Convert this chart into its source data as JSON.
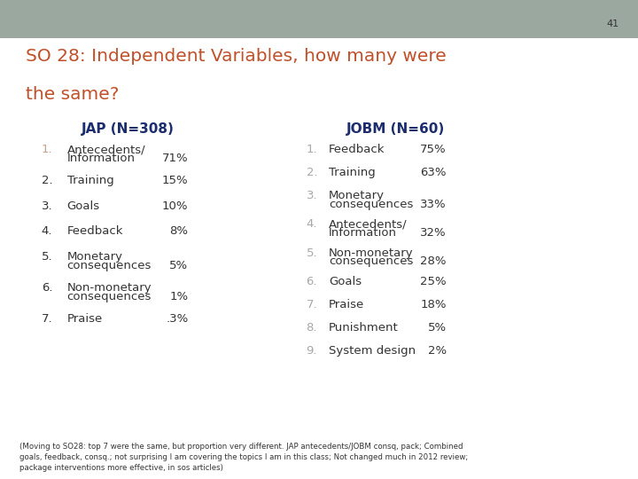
{
  "slide_number": "41",
  "title_line1": "SO 28: Independent Variables, how many were",
  "title_line2": "the same?",
  "title_color": "#C0502A",
  "header_bar_color": "#9BA8A0",
  "content_background": "#FFFFFF",
  "jap_header": "JAP (N=308)",
  "jobm_header": "JOBM (N=60)",
  "header_color": "#1C2D6E",
  "jap_items": [
    {
      "num": "1.",
      "text": "Antecedents/",
      "text2": "Information",
      "pct": "71%",
      "num_light": true
    },
    {
      "num": "2.",
      "text": "Training",
      "text2": "",
      "pct": "15%",
      "num_light": false
    },
    {
      "num": "3.",
      "text": "Goals",
      "text2": "",
      "pct": "10%",
      "num_light": false
    },
    {
      "num": "4.",
      "text": "Feedback",
      "text2": "",
      "pct": "8%",
      "num_light": false
    },
    {
      "num": "5.",
      "text": "Monetary",
      "text2": "consequences",
      "pct": "5%",
      "num_light": false
    },
    {
      "num": "6.",
      "text": "Non-monetary",
      "text2": "consequences",
      "pct": "1%",
      "num_light": false
    },
    {
      "num": "7.",
      "text": "Praise",
      "text2": "",
      "pct": ".3%",
      "num_light": false
    }
  ],
  "jobm_items": [
    {
      "num": "1.",
      "text": "Feedback",
      "text2": "",
      "pct": "75%",
      "num_light": true
    },
    {
      "num": "2.",
      "text": "Training",
      "text2": "",
      "pct": "63%",
      "num_light": true
    },
    {
      "num": "3.",
      "text": "Monetary",
      "text2": "consequences",
      "pct": "33%",
      "num_light": true
    },
    {
      "num": "4.",
      "text": "Antecedents/",
      "text2": "Information",
      "pct": "32%",
      "num_light": true
    },
    {
      "num": "5.",
      "text": "Non-monetary",
      "text2": "consequences",
      "pct": "28%",
      "num_light": true
    },
    {
      "num": "6.",
      "text": "Goals",
      "text2": "",
      "pct": "25%",
      "num_light": true
    },
    {
      "num": "7.",
      "text": "Praise",
      "text2": "",
      "pct": "18%",
      "num_light": true
    },
    {
      "num": "8.",
      "text": "Punishment",
      "text2": "",
      "pct": "5%",
      "num_light": true
    },
    {
      "num": "9.",
      "text": "System design",
      "text2": "",
      "pct": "2%",
      "num_light": true
    }
  ],
  "jap_num_light_color": "#C8A090",
  "jap_num_dark_color": "#333333",
  "jobm_num_color": "#A8A8A8",
  "item_text_color": "#333333",
  "footer_text": "(Moving to SO28: top 7 were the same, but proportion very different. JAP antecedents/JOBM consq, pack; Combined\ngoals, feedback, consq.; not surprising I am covering the topics I am in this class; Not changed much in 2012 review;\npackage interventions more effective, in sos articles)"
}
